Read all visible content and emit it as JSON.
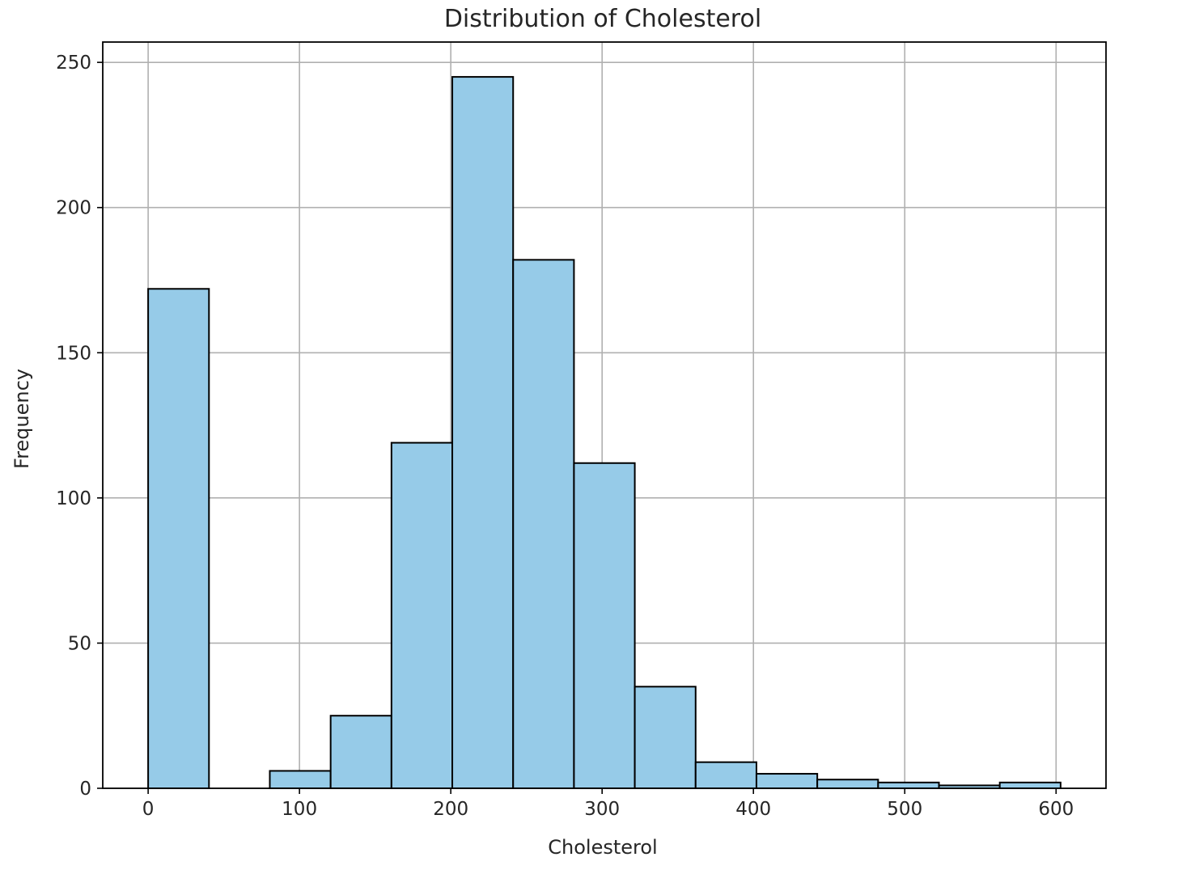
{
  "chart_data": {
    "type": "bar",
    "title": "Distribution of Cholesterol",
    "xlabel": "Cholesterol",
    "ylabel": "Frequency",
    "xlim": [
      -30,
      633
    ],
    "ylim": [
      0,
      257
    ],
    "xticks": [
      0,
      100,
      200,
      300,
      400,
      500,
      600
    ],
    "yticks": [
      0,
      50,
      100,
      150,
      200,
      250
    ],
    "grid": true,
    "bar_color": "#96cbe8",
    "edge_color": "#000000",
    "bins": [
      {
        "start": 0,
        "end": 40.2,
        "count": 172
      },
      {
        "start": 40.2,
        "end": 80.4,
        "count": 0
      },
      {
        "start": 80.4,
        "end": 120.6,
        "count": 6
      },
      {
        "start": 120.6,
        "end": 160.8,
        "count": 25
      },
      {
        "start": 160.8,
        "end": 201,
        "count": 119
      },
      {
        "start": 201,
        "end": 241.2,
        "count": 245
      },
      {
        "start": 241.2,
        "end": 281.4,
        "count": 182
      },
      {
        "start": 281.4,
        "end": 321.6,
        "count": 112
      },
      {
        "start": 321.6,
        "end": 361.8,
        "count": 35
      },
      {
        "start": 361.8,
        "end": 402,
        "count": 9
      },
      {
        "start": 402,
        "end": 442.2,
        "count": 5
      },
      {
        "start": 442.2,
        "end": 482.4,
        "count": 3
      },
      {
        "start": 482.4,
        "end": 522.6,
        "count": 2
      },
      {
        "start": 522.6,
        "end": 562.8,
        "count": 1
      },
      {
        "start": 562.8,
        "end": 603,
        "count": 2
      }
    ]
  }
}
